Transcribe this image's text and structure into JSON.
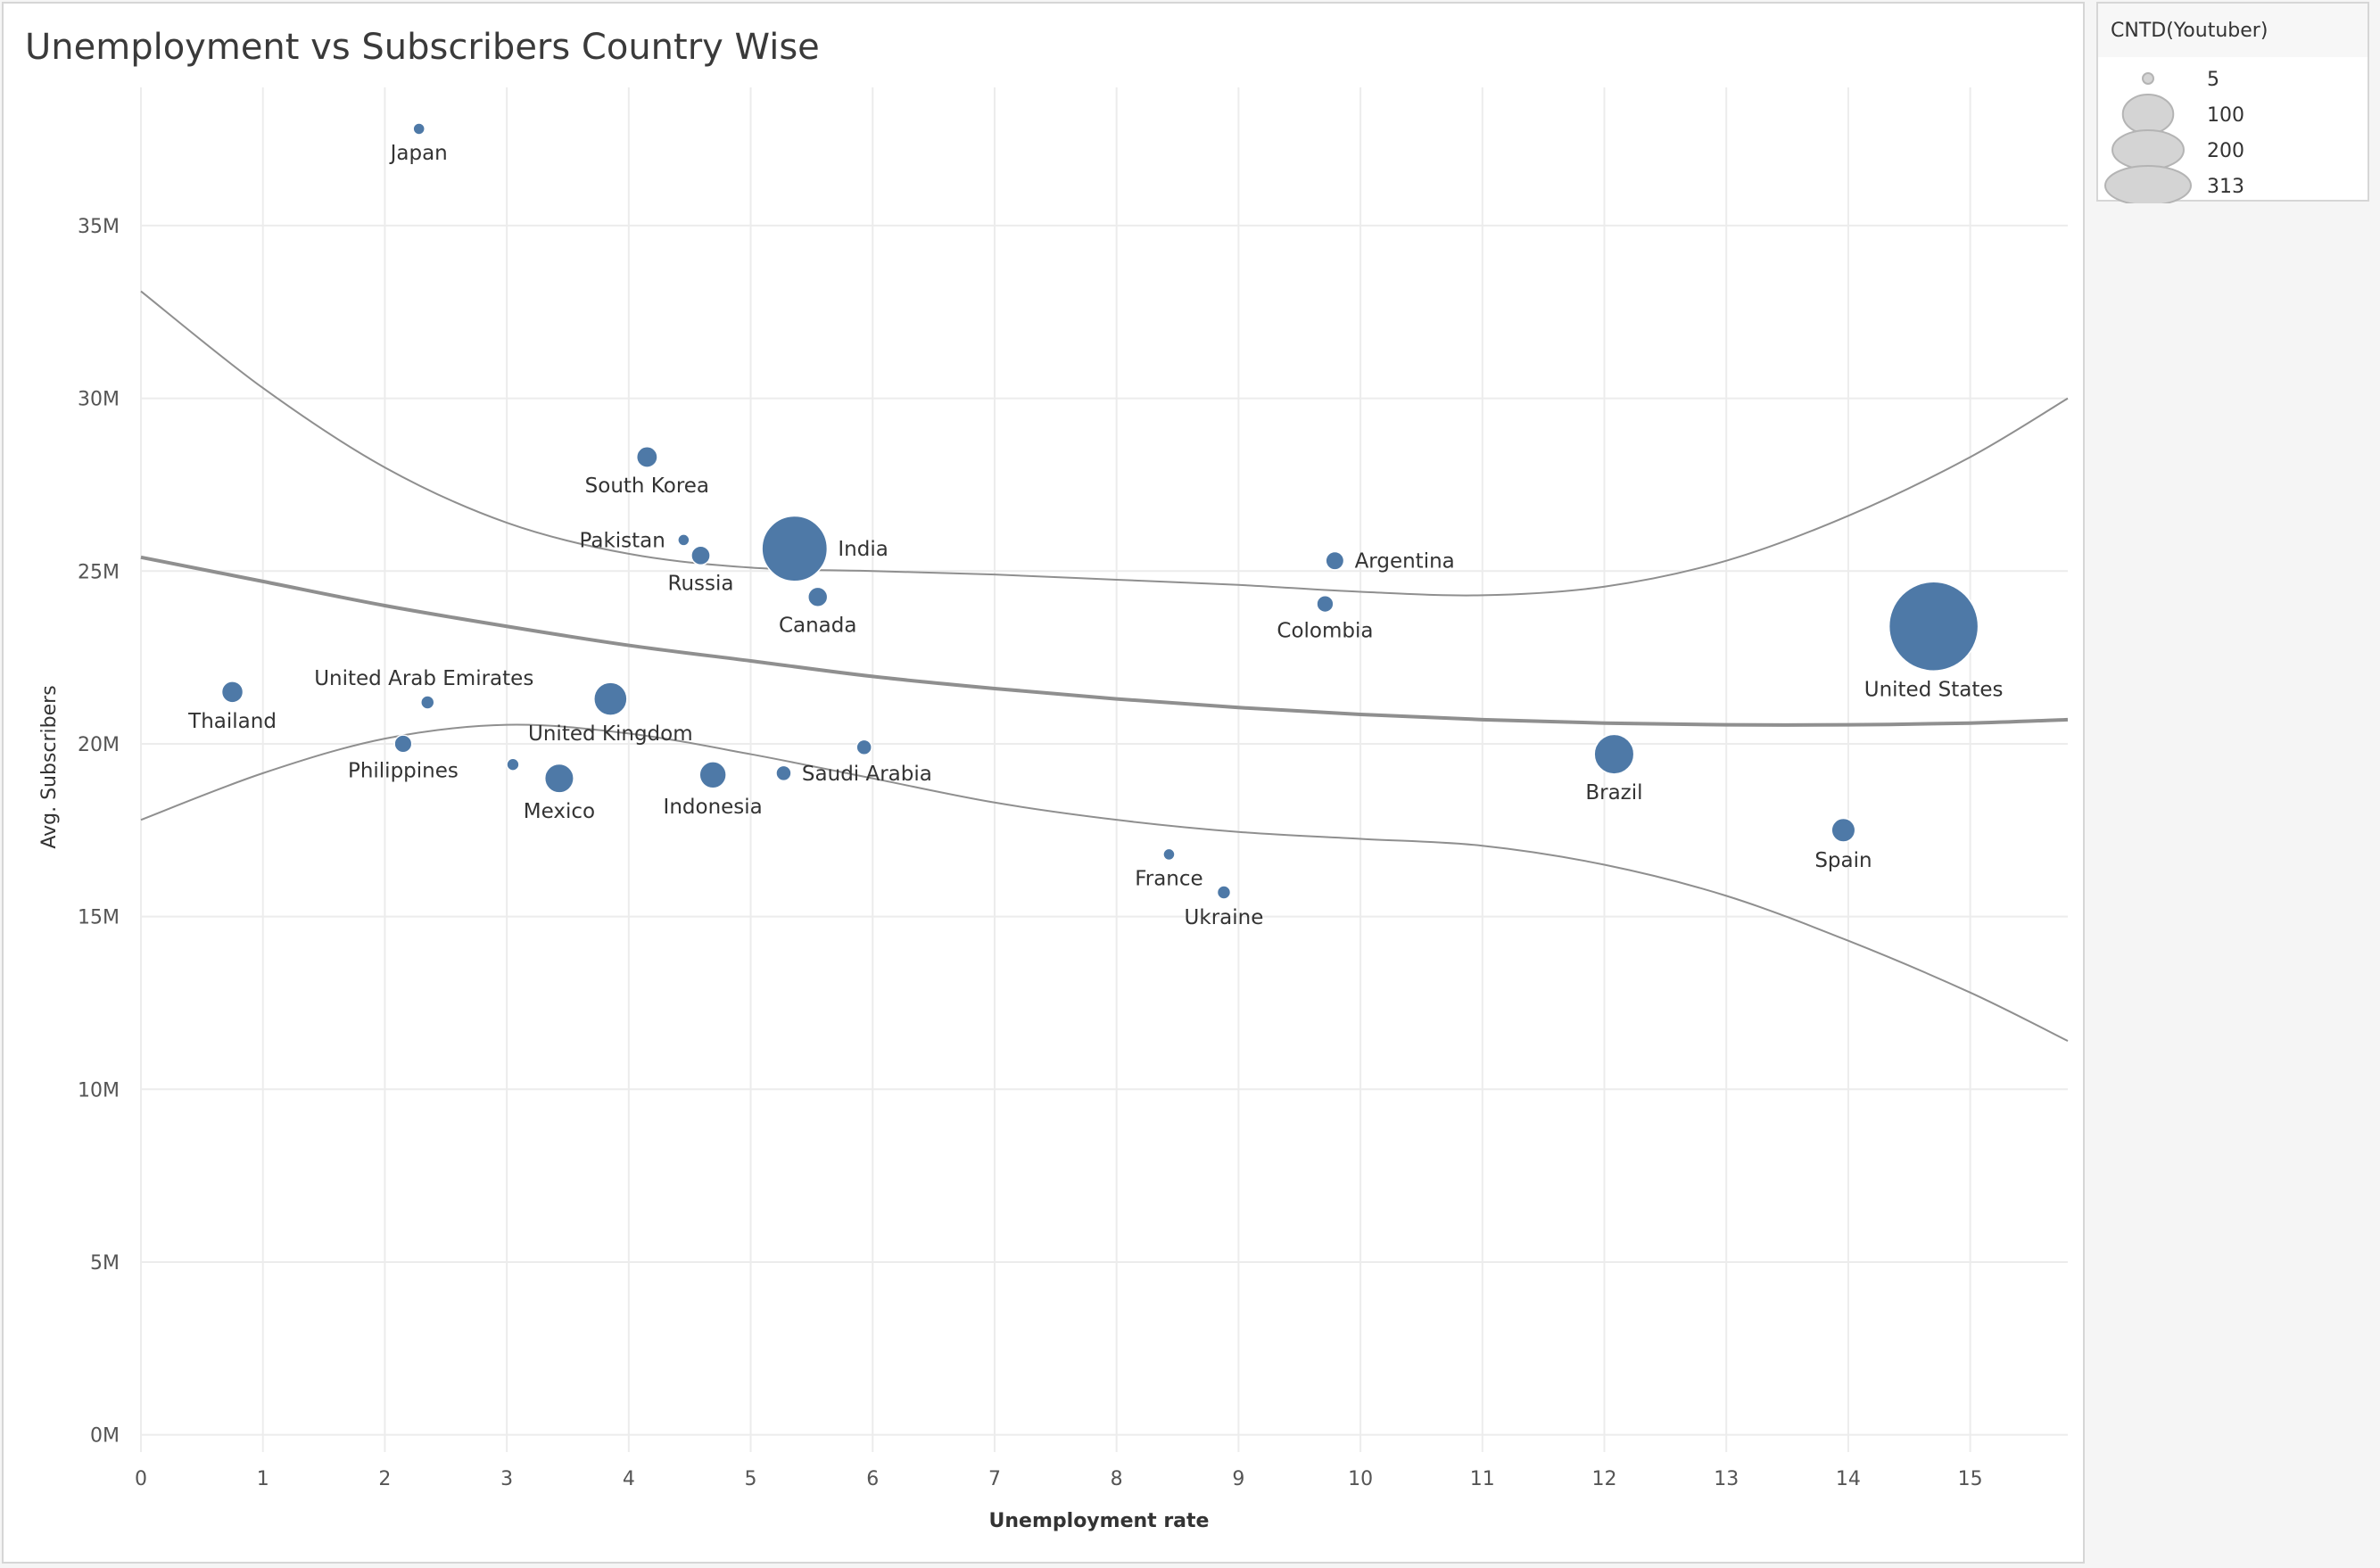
{
  "chart_data": {
    "type": "scatter",
    "title": "Unemployment vs Subscribers Country Wise",
    "xlabel": "Unemployment rate",
    "ylabel": "Avg. Subscribers",
    "xlim": [
      0,
      15.8
    ],
    "ylim": [
      -0.5,
      39
    ],
    "x_ticks": [
      {
        "value": 0,
        "label": "0"
      },
      {
        "value": 1,
        "label": "1"
      },
      {
        "value": 2,
        "label": "2"
      },
      {
        "value": 3,
        "label": "3"
      },
      {
        "value": 4,
        "label": "4"
      },
      {
        "value": 5,
        "label": "5"
      },
      {
        "value": 6,
        "label": "6"
      },
      {
        "value": 7,
        "label": "7"
      },
      {
        "value": 8,
        "label": "8"
      },
      {
        "value": 9,
        "label": "9"
      },
      {
        "value": 10,
        "label": "10"
      },
      {
        "value": 11,
        "label": "11"
      },
      {
        "value": 12,
        "label": "12"
      },
      {
        "value": 13,
        "label": "13"
      },
      {
        "value": 14,
        "label": "14"
      },
      {
        "value": 15,
        "label": "15"
      }
    ],
    "y_ticks": [
      {
        "value": 0,
        "label": "0M"
      },
      {
        "value": 5,
        "label": "5M"
      },
      {
        "value": 10,
        "label": "10M"
      },
      {
        "value": 15,
        "label": "15M"
      },
      {
        "value": 20,
        "label": "20M"
      },
      {
        "value": 25,
        "label": "25M"
      },
      {
        "value": 30,
        "label": "30M"
      },
      {
        "value": 35,
        "label": "35M"
      }
    ],
    "y_unit": "millions",
    "grid": true,
    "marker_color": "#4e79a7",
    "size_encoding": "CNTD(Youtuber)",
    "points": [
      {
        "label": "Japan",
        "x": 2.28,
        "y": 37.8,
        "count": 5,
        "label_pos": "below"
      },
      {
        "label": "South Korea",
        "x": 4.15,
        "y": 28.3,
        "count": 17,
        "label_pos": "below"
      },
      {
        "label": "Pakistan",
        "x": 4.45,
        "y": 25.9,
        "count": 5,
        "label_pos": "left"
      },
      {
        "label": "Russia",
        "x": 4.59,
        "y": 25.45,
        "count": 14,
        "label_pos": "below"
      },
      {
        "label": "India",
        "x": 5.36,
        "y": 25.65,
        "count": 168,
        "label_pos": "right"
      },
      {
        "label": "Canada",
        "x": 5.55,
        "y": 24.25,
        "count": 15,
        "label_pos": "below"
      },
      {
        "label": "Argentina",
        "x": 9.79,
        "y": 25.3,
        "count": 13,
        "label_pos": "right"
      },
      {
        "label": "Colombia",
        "x": 9.71,
        "y": 24.05,
        "count": 11,
        "label_pos": "below"
      },
      {
        "label": "United States",
        "x": 14.7,
        "y": 23.4,
        "count": 313,
        "label_pos": "below"
      },
      {
        "label": "Thailand",
        "x": 0.75,
        "y": 21.5,
        "count": 18,
        "label_pos": "below"
      },
      {
        "label": "United Arab Emirates",
        "x": 2.35,
        "y": 21.2,
        "count": 7,
        "label_pos": "above"
      },
      {
        "label": "United Kingdom",
        "x": 3.85,
        "y": 21.3,
        "count": 43,
        "label_pos": "below"
      },
      {
        "label": "Philippines",
        "x": 2.15,
        "y": 20.0,
        "count": 12,
        "label_pos": "below"
      },
      {
        "label": "",
        "x": 3.05,
        "y": 19.4,
        "count": 6,
        "label_pos": "none"
      },
      {
        "label": "Mexico",
        "x": 3.43,
        "y": 19.0,
        "count": 33,
        "label_pos": "below"
      },
      {
        "label": "Indonesia",
        "x": 4.69,
        "y": 19.1,
        "count": 28,
        "label_pos": "below"
      },
      {
        "label": "Saudi Arabia",
        "x": 5.27,
        "y": 19.15,
        "count": 9,
        "label_pos": "right"
      },
      {
        "label": "",
        "x": 5.93,
        "y": 19.9,
        "count": 9,
        "label_pos": "none"
      },
      {
        "label": "Brazil",
        "x": 12.08,
        "y": 19.7,
        "count": 62,
        "label_pos": "below"
      },
      {
        "label": "Spain",
        "x": 13.96,
        "y": 17.5,
        "count": 22,
        "label_pos": "below"
      },
      {
        "label": "France",
        "x": 8.43,
        "y": 16.8,
        "count": 5,
        "label_pos": "below"
      },
      {
        "label": "Ukraine",
        "x": 8.88,
        "y": 15.7,
        "count": 7,
        "label_pos": "below"
      }
    ],
    "trend_line": {
      "x": [
        0,
        1,
        2,
        3,
        4,
        5,
        6,
        7,
        8,
        9,
        10,
        11,
        12,
        13,
        14,
        15,
        15.8
      ],
      "y": [
        25.4,
        24.7,
        24.0,
        23.4,
        22.85,
        22.4,
        21.95,
        21.6,
        21.3,
        21.05,
        20.85,
        20.7,
        20.6,
        20.55,
        20.55,
        20.6,
        20.7
      ]
    },
    "upper_band": {
      "x": [
        0,
        1,
        2,
        3,
        4,
        5,
        6,
        7,
        8,
        9,
        10,
        11,
        12,
        13,
        14,
        15,
        15.8
      ],
      "y": [
        33.1,
        30.3,
        28.0,
        26.4,
        25.5,
        25.1,
        25.0,
        24.9,
        24.75,
        24.6,
        24.4,
        24.3,
        24.55,
        25.3,
        26.6,
        28.3,
        30.0
      ]
    },
    "lower_band": {
      "x": [
        0,
        1,
        2,
        3,
        4,
        5,
        6,
        7,
        8,
        9,
        10,
        11,
        12,
        13,
        14,
        15,
        15.8
      ],
      "y": [
        17.8,
        19.15,
        20.15,
        20.55,
        20.3,
        19.7,
        19.0,
        18.3,
        17.8,
        17.45,
        17.25,
        17.05,
        16.5,
        15.6,
        14.3,
        12.8,
        11.4
      ]
    }
  },
  "legend": {
    "title": "CNTD(Youtuber)",
    "items": [
      {
        "label": "5",
        "count": 5
      },
      {
        "label": "100",
        "count": 100
      },
      {
        "label": "200",
        "count": 200
      },
      {
        "label": "313",
        "count": 313
      }
    ]
  },
  "colors": {
    "marker": "#4e79a7",
    "trend": "#8f8f8f",
    "grid": "#ececec",
    "legend_marker_fill": "#d4d4d4",
    "legend_marker_stroke": "#b4b4b4"
  }
}
